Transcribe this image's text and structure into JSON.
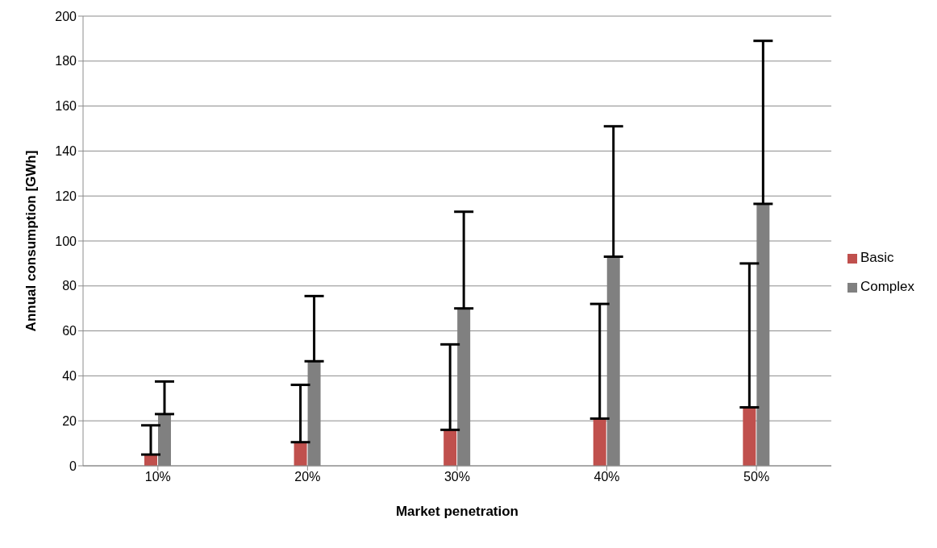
{
  "chart_data": {
    "type": "bar",
    "xlabel": "Market penetration",
    "ylabel": "Annual consumption [GWh]",
    "categories": [
      "10%",
      "20%",
      "30%",
      "40%",
      "50%"
    ],
    "series": [
      {
        "name": "Basic",
        "color": "#c0504d",
        "values": [
          5,
          10.5,
          16,
          21,
          26
        ],
        "errors": [
          [
            5,
            18
          ],
          [
            10.5,
            36
          ],
          [
            16,
            54
          ],
          [
            21,
            72
          ],
          [
            26,
            90
          ]
        ]
      },
      {
        "name": "Complex",
        "color": "#808080",
        "values": [
          23,
          46.5,
          70,
          93,
          116.5
        ],
        "errors": [
          [
            23,
            37.5
          ],
          [
            46.5,
            75.5
          ],
          [
            70,
            113
          ],
          [
            93,
            151
          ],
          [
            116.5,
            189
          ]
        ]
      }
    ],
    "ylim": [
      0,
      200
    ],
    "yticks": [
      0,
      20,
      40,
      60,
      80,
      100,
      120,
      140,
      160,
      180,
      200
    ],
    "grid": "y",
    "legend": "right"
  }
}
